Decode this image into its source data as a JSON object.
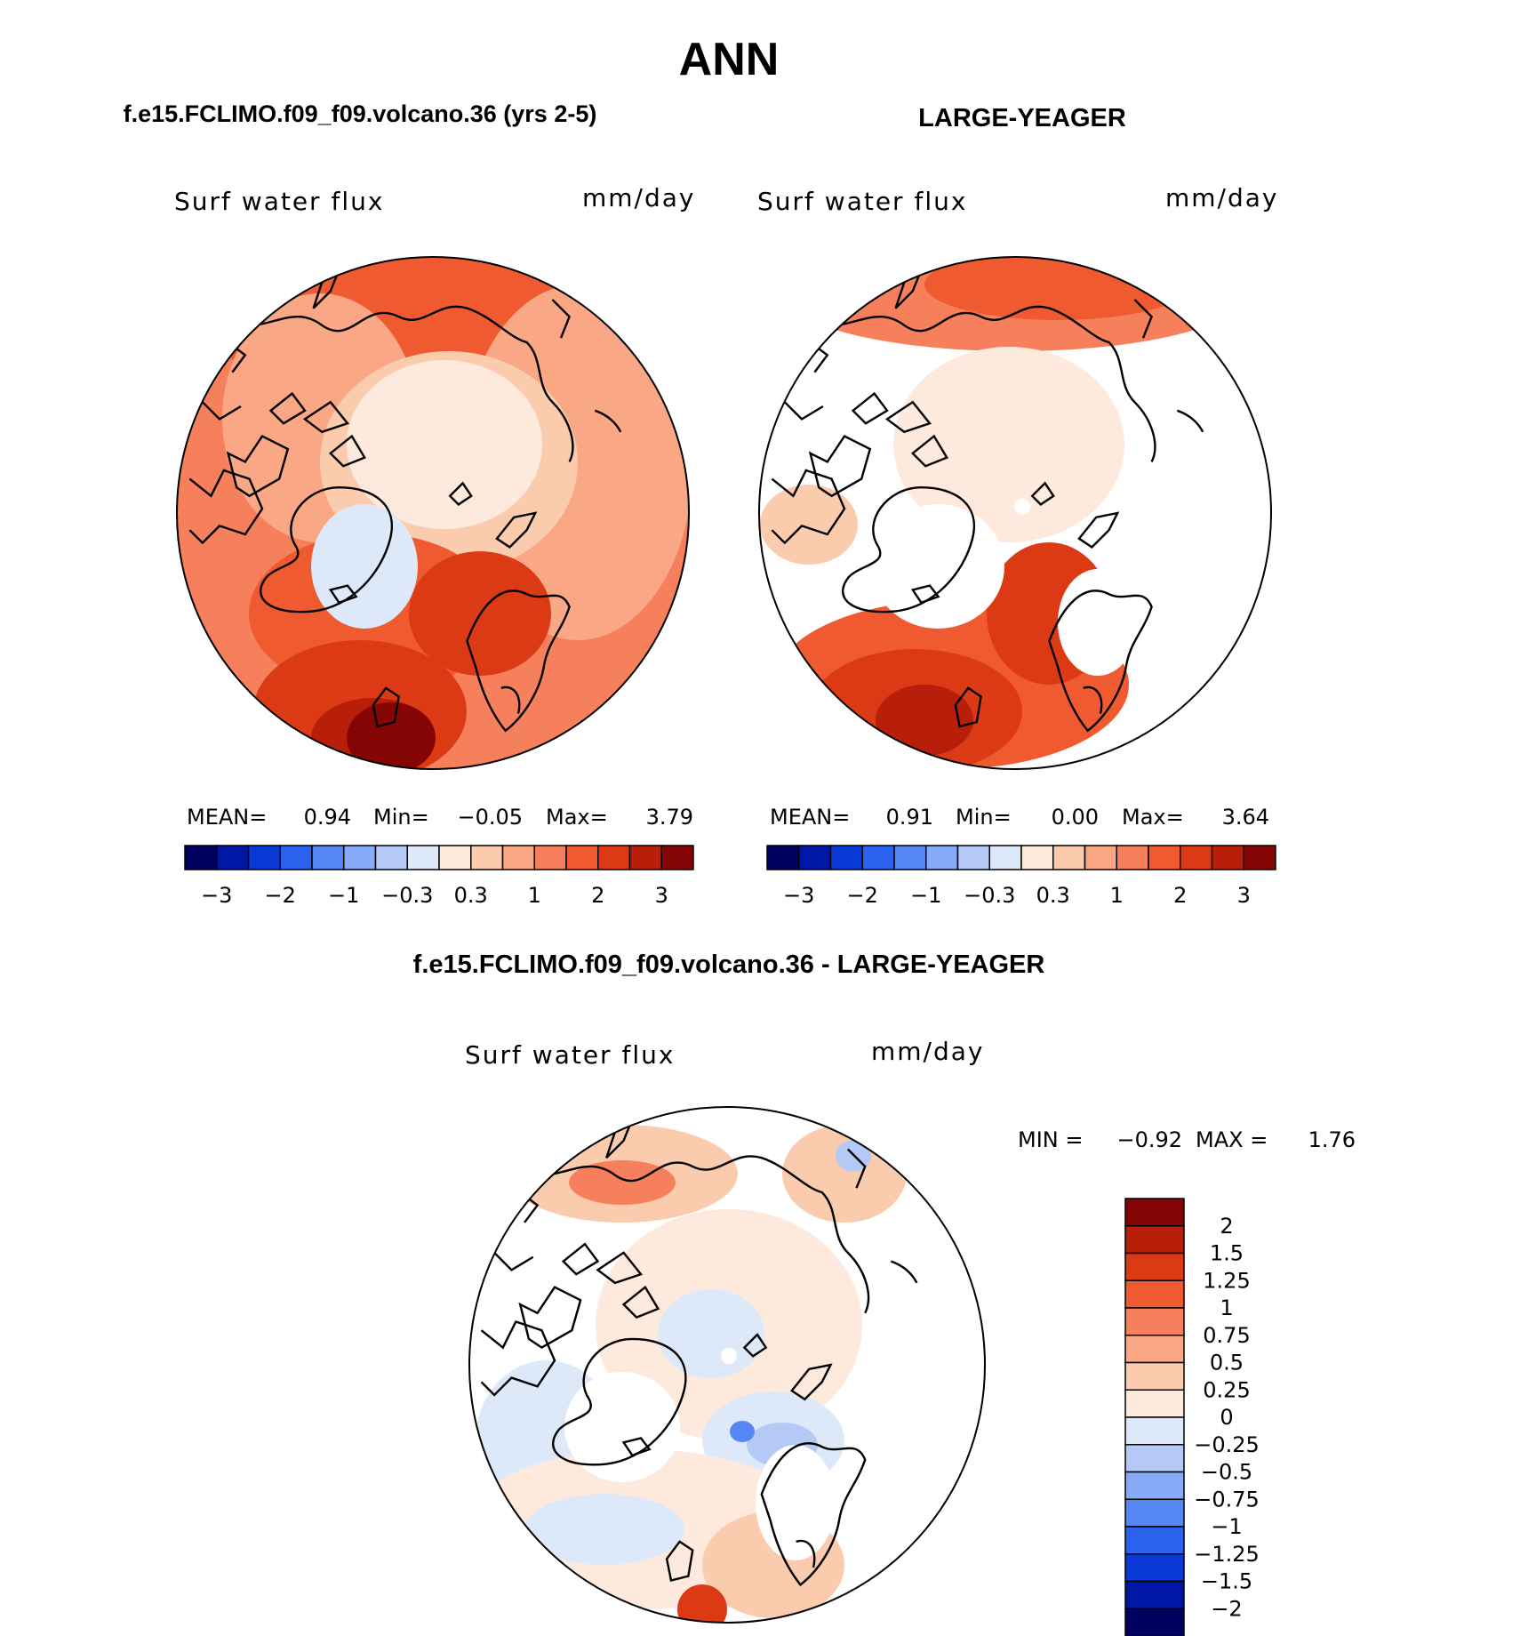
{
  "title": "ANN",
  "colors": {
    "land_outline": "#000000",
    "blank": "#ffffff",
    "scale": [
      "#00005e",
      "#0017a6",
      "#0a3ad6",
      "#2b62f0",
      "#5688f5",
      "#86aaf7",
      "#b4c9f6",
      "#dde9f9",
      "#fdeadc",
      "#fbcbae",
      "#f9a784",
      "#f6805b",
      "#f05a30",
      "#dc3a14",
      "#b71f0a",
      "#850505"
    ]
  },
  "panels": [
    {
      "id": "test",
      "case_title": "f.e15.FCLIMO.f09_f09.volcano.36 (yrs 2-5)",
      "variable": "Surf water flux",
      "units": "mm/day",
      "stats": {
        "mean_label": "MEAN=",
        "mean": "0.94",
        "min_label": "Min=",
        "min": "−0.05",
        "max_label": "Max=",
        "max": "3.79"
      },
      "colorbar_ticks": [
        "−3",
        "−2",
        "−1",
        "−0.3",
        "0.3",
        "1",
        "2",
        "3"
      ]
    },
    {
      "id": "obs",
      "case_title": "LARGE-YEAGER",
      "variable": "Surf water flux",
      "units": "mm/day",
      "stats": {
        "mean_label": "MEAN=",
        "mean": "0.91",
        "min_label": "Min=",
        "min": "0.00",
        "max_label": "Max=",
        "max": "3.64"
      },
      "colorbar_ticks": [
        "−3",
        "−2",
        "−1",
        "−0.3",
        "0.3",
        "1",
        "2",
        "3"
      ]
    }
  ],
  "difference": {
    "title": "f.e15.FCLIMO.f09_f09.volcano.36 - LARGE-YEAGER",
    "variable": "Surf water flux",
    "units": "mm/day",
    "min_label": "MIN =",
    "min": "−0.92",
    "max_label": "MAX =",
    "max": "1.76",
    "colorbar_labels": [
      "2",
      "1.5",
      "1.25",
      "1",
      "0.75",
      "0.5",
      "0.25",
      "0",
      "−0.25",
      "−0.5",
      "−0.75",
      "−1",
      "−1.25",
      "−1.5",
      "−2"
    ]
  }
}
